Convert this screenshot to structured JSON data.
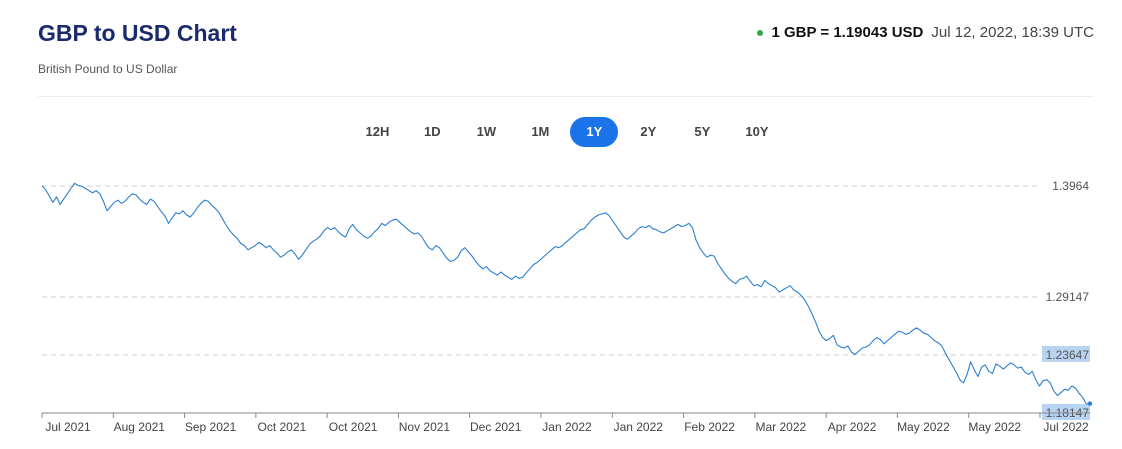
{
  "header": {
    "title": "GBP to USD Chart",
    "subtitle": "British Pound to US Dollar",
    "rate_label": "1 GBP = 1.19043 USD",
    "timestamp": "Jul 12, 2022, 18:39 UTC"
  },
  "periods": [
    "12H",
    "1D",
    "1W",
    "1M",
    "1Y",
    "2Y",
    "5Y",
    "10Y"
  ],
  "active_period": "1Y",
  "colors": {
    "accent": "#1a73e8",
    "line": "#2b7fd0",
    "title": "#1a2a6c",
    "live_dot": "#2eaa4a",
    "highlight": "#b9d3f3"
  },
  "chart_data": {
    "type": "line",
    "title": "",
    "xlabel": "",
    "ylabel": "",
    "ylim": [
      1.18147,
      1.3964
    ],
    "y_ticks": [
      "1.3964",
      "1.29147",
      "1.23647",
      "1.18147"
    ],
    "y_ticks_highlighted": [
      "1.23647",
      "1.18147"
    ],
    "x_tick_labels": [
      "Jul 2021",
      "Aug 2021",
      "Sep 2021",
      "Oct 2021",
      "Oct 2021",
      "Nov 2021",
      "Dec 2021",
      "Jan 2022",
      "Jan 2022",
      "Feb 2022",
      "Mar 2022",
      "Apr 2022",
      "May 2022",
      "May 2022",
      "Jul 2022"
    ],
    "grid": "horizontal dashed",
    "series": [
      {
        "values": [
          1.3964,
          1.393,
          1.387,
          1.381,
          1.386,
          1.379,
          1.384,
          1.389,
          1.394,
          1.399,
          1.397,
          1.396,
          1.394,
          1.392,
          1.39,
          1.392,
          1.389,
          1.382,
          1.373,
          1.377,
          1.381,
          1.383,
          1.38,
          1.382,
          1.386,
          1.389,
          1.388,
          1.384,
          1.381,
          1.379,
          1.384,
          1.382,
          1.377,
          1.372,
          1.368,
          1.361,
          1.366,
          1.371,
          1.37,
          1.373,
          1.369,
          1.367,
          1.371,
          1.376,
          1.38,
          1.383,
          1.382,
          1.378,
          1.375,
          1.371,
          1.365,
          1.359,
          1.354,
          1.35,
          1.347,
          1.342,
          1.34,
          1.336,
          1.338,
          1.34,
          1.343,
          1.341,
          1.338,
          1.34,
          1.336,
          1.333,
          1.329,
          1.331,
          1.334,
          1.336,
          1.332,
          1.327,
          1.331,
          1.336,
          1.341,
          1.344,
          1.346,
          1.349,
          1.354,
          1.357,
          1.355,
          1.357,
          1.353,
          1.35,
          1.348,
          1.356,
          1.36,
          1.355,
          1.352,
          1.349,
          1.347,
          1.349,
          1.353,
          1.356,
          1.361,
          1.359,
          1.362,
          1.364,
          1.365,
          1.362,
          1.359,
          1.356,
          1.353,
          1.351,
          1.352,
          1.349,
          1.343,
          1.338,
          1.336,
          1.34,
          1.338,
          1.333,
          1.328,
          1.325,
          1.326,
          1.329,
          1.335,
          1.338,
          1.334,
          1.33,
          1.325,
          1.321,
          1.318,
          1.32,
          1.316,
          1.314,
          1.312,
          1.315,
          1.312,
          1.31,
          1.308,
          1.311,
          1.309,
          1.31,
          1.314,
          1.318,
          1.322,
          1.324,
          1.327,
          1.33,
          1.333,
          1.336,
          1.339,
          1.338,
          1.34,
          1.343,
          1.346,
          1.349,
          1.352,
          1.355,
          1.356,
          1.36,
          1.364,
          1.367,
          1.369,
          1.37,
          1.371,
          1.368,
          1.363,
          1.358,
          1.353,
          1.348,
          1.346,
          1.349,
          1.352,
          1.356,
          1.358,
          1.357,
          1.359,
          1.356,
          1.355,
          1.353,
          1.352,
          1.354,
          1.356,
          1.358,
          1.36,
          1.358,
          1.359,
          1.361,
          1.357,
          1.345,
          1.338,
          1.333,
          1.329,
          1.331,
          1.33,
          1.323,
          1.318,
          1.313,
          1.309,
          1.306,
          1.304,
          1.308,
          1.309,
          1.311,
          1.306,
          1.302,
          1.303,
          1.301,
          1.307,
          1.304,
          1.302,
          1.3,
          1.296,
          1.298,
          1.3,
          1.302,
          1.298,
          1.296,
          1.293,
          1.289,
          1.283,
          1.276,
          1.268,
          1.259,
          1.253,
          1.25,
          1.252,
          1.255,
          1.246,
          1.244,
          1.243,
          1.245,
          1.239,
          1.237,
          1.24,
          1.243,
          1.244,
          1.246,
          1.25,
          1.253,
          1.251,
          1.247,
          1.25,
          1.253,
          1.256,
          1.259,
          1.258,
          1.256,
          1.257,
          1.26,
          1.262,
          1.26,
          1.257,
          1.256,
          1.253,
          1.25,
          1.248,
          1.245,
          1.238,
          1.232,
          1.226,
          1.22,
          1.213,
          1.21,
          1.218,
          1.23,
          1.222,
          1.216,
          1.225,
          1.227,
          1.221,
          1.219,
          1.228,
          1.226,
          1.223,
          1.226,
          1.229,
          1.227,
          1.224,
          1.225,
          1.22,
          1.218,
          1.221,
          1.213,
          1.207,
          1.212,
          1.213,
          1.21,
          1.202,
          1.198,
          1.201,
          1.204,
          1.203,
          1.207,
          1.205,
          1.2,
          1.196,
          1.19,
          1.19043
        ]
      }
    ]
  }
}
